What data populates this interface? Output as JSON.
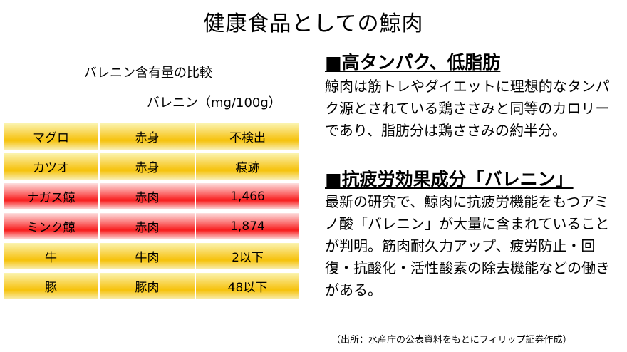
{
  "title": "健康食品としての鯨肉",
  "table": {
    "caption": "バレニン含有量の比較",
    "unit": "バレニン（mg/100g）",
    "rows": [
      {
        "name": "マグロ",
        "part": "赤身",
        "value": "不検出",
        "style": "yellow"
      },
      {
        "name": "カツオ",
        "part": "赤身",
        "value": "痕跡",
        "style": "yellow"
      },
      {
        "name": "ナガス鯨",
        "part": "赤肉",
        "value": "1,466",
        "style": "red"
      },
      {
        "name": "ミンク鯨",
        "part": "赤肉",
        "value": "1,874",
        "style": "red"
      },
      {
        "name": "牛",
        "part": "牛肉",
        "value": "2以下",
        "style": "yellow"
      },
      {
        "name": "豚",
        "part": "豚肉",
        "value": "48以下",
        "style": "yellow"
      }
    ]
  },
  "section1": {
    "heading": "■高タンパク、低脂肪",
    "text": "鯨肉は筋トレやダイエットに理想的なタンパク源とされている鶏ささみと同等のカロリーであり、脂肪分は鶏ささみの約半分。"
  },
  "section2": {
    "heading": "■抗疲労効果成分「バレニン」",
    "text": "最新の研究で、鯨肉に抗疲労機能をもつアミノ酸「バレニン」が大量に含まれていることが判明。筋肉耐久力アップ、疲労防止・回復・抗酸化・活性酸素の除去機能などの働きがある。"
  },
  "source": "（出所：水産庁の公表資料をもとにフィリップ証券作成）",
  "colors": {
    "yellow_band": "#f6c20a",
    "red_band": "#f81c1c"
  }
}
